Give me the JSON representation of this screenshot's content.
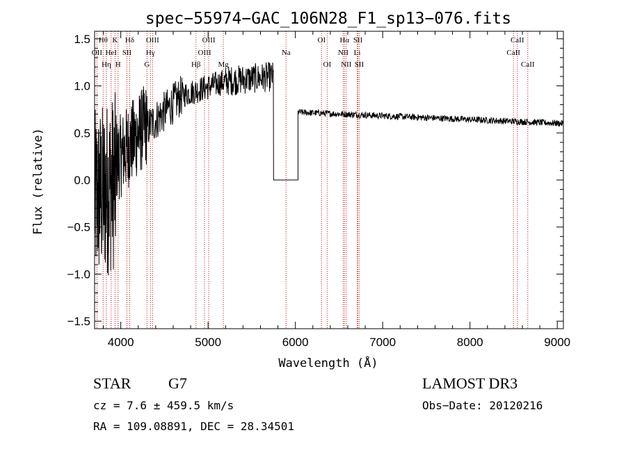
{
  "chart_data": {
    "type": "line",
    "title": "spec−55974−GAC_106N28_F1_sp13−076.fits",
    "xlabel": "Wavelength (Å)",
    "ylabel": "Flux (relative)",
    "xlim": [
      3700,
      9070
    ],
    "ylim": [
      -1.58,
      1.58
    ],
    "xticks": [
      4000,
      5000,
      6000,
      7000,
      8000,
      9000
    ],
    "xtick_labels": [
      "4000",
      "5000",
      "6000",
      "7000",
      "8000",
      "9000"
    ],
    "yticks": [
      -1.5,
      -1.0,
      -0.5,
      0.0,
      0.5,
      1.0,
      1.5
    ],
    "ytick_labels": [
      "−1.5",
      "−1.0",
      "−0.5",
      "0.0",
      "0.5",
      "1.0",
      "1.5"
    ],
    "line_color": "#000000",
    "marker_color": "#cc0000",
    "spectrum_segments": [
      {
        "x0": 3700,
        "x1": 3950,
        "base": -0.2,
        "slope_end": 0.0,
        "noise": 0.95
      },
      {
        "x0": 3950,
        "x1": 4300,
        "base": 0.2,
        "slope_end": 0.6,
        "noise": 0.45
      },
      {
        "x0": 4300,
        "x1": 4700,
        "base": 0.55,
        "slope_end": 0.9,
        "noise": 0.22
      },
      {
        "x0": 4700,
        "x1": 5200,
        "base": 0.9,
        "slope_end": 1.05,
        "noise": 0.14
      },
      {
        "x0": 5200,
        "x1": 5750,
        "base": 1.05,
        "slope_end": 1.1,
        "noise": 0.16
      },
      {
        "x0": 5750,
        "x1": 6030,
        "base": 0.0,
        "slope_end": 0.0,
        "noise": 0.0
      },
      {
        "x0": 6030,
        "x1": 9070,
        "base": 0.72,
        "slope_end": 0.6,
        "noise": 0.035
      }
    ],
    "line_markers": [
      {
        "x": 3727,
        "label": "OII",
        "row": 1
      },
      {
        "x": 3798,
        "label": "Hθ",
        "row": 0
      },
      {
        "x": 3835,
        "label": "Hη",
        "row": 2
      },
      {
        "x": 3889,
        "label": "HeI",
        "row": 1
      },
      {
        "x": 3934,
        "label": "K",
        "row": 0
      },
      {
        "x": 3969,
        "label": "H",
        "row": 2
      },
      {
        "x": 4070,
        "label": "SII",
        "row": 1
      },
      {
        "x": 4102,
        "label": "Hδ",
        "row": 0
      },
      {
        "x": 4300,
        "label": "G",
        "row": 2
      },
      {
        "x": 4340,
        "label": "Hγ",
        "row": 1
      },
      {
        "x": 4364,
        "label": "OIII",
        "row": 0
      },
      {
        "x": 4861,
        "label": "Hβ",
        "row": 2
      },
      {
        "x": 4959,
        "label": "OIII",
        "row": 1
      },
      {
        "x": 5007,
        "label": "OIII",
        "row": 0
      },
      {
        "x": 5175,
        "label": "Mg",
        "row": 2
      },
      {
        "x": 5893,
        "label": "Na",
        "row": 1
      },
      {
        "x": 6300,
        "label": "OI",
        "row": 0
      },
      {
        "x": 6364,
        "label": "OI",
        "row": 2
      },
      {
        "x": 6548,
        "label": "NII",
        "row": 1
      },
      {
        "x": 6563,
        "label": "Hα",
        "row": 0
      },
      {
        "x": 6583,
        "label": "NII",
        "row": 2
      },
      {
        "x": 6708,
        "label": "Li",
        "row": 1
      },
      {
        "x": 6716,
        "label": "SII",
        "row": 0
      },
      {
        "x": 6731,
        "label": "SII",
        "row": 2
      },
      {
        "x": 8498,
        "label": "CaII",
        "row": 1
      },
      {
        "x": 8542,
        "label": "CaII",
        "row": 0
      },
      {
        "x": 8662,
        "label": "CaII",
        "row": 2
      }
    ]
  },
  "info": {
    "object_class": "STAR",
    "subclass": "G7",
    "survey": "LAMOST DR3",
    "cz": "cz = 7.6 ± 459.5 km/s",
    "obs_date": "Obs−Date: 20120216",
    "coords": "RA = 109.08891, DEC =  28.34501"
  }
}
